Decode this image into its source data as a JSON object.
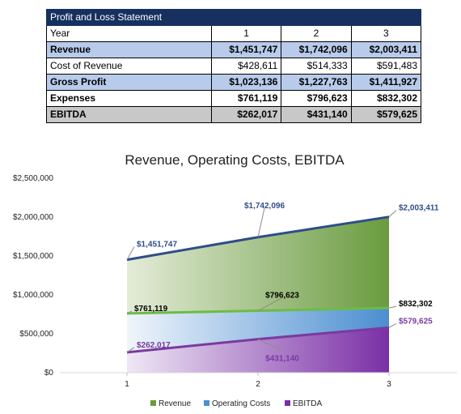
{
  "table": {
    "title": "Profit and Loss Statement",
    "header_label": "Year",
    "years": [
      "1",
      "2",
      "3"
    ],
    "rows": [
      {
        "label": "Revenue",
        "values": [
          "$1,451,747",
          "$1,742,096",
          "$2,003,411"
        ],
        "style": "blue"
      },
      {
        "label": "Cost of Revenue",
        "values": [
          "$428,611",
          "$514,333",
          "$591,483"
        ],
        "style": "plain"
      },
      {
        "label": "Gross Profit",
        "values": [
          "$1,023,136",
          "$1,227,763",
          "$1,411,927"
        ],
        "style": "blue"
      },
      {
        "label": "Expenses",
        "values": [
          "$761,119",
          "$796,623",
          "$832,302"
        ],
        "style": "bold"
      },
      {
        "label": "EBITDA",
        "values": [
          "$262,017",
          "$431,140",
          "$579,625"
        ],
        "style": "gray"
      }
    ]
  },
  "chart_data": {
    "type": "area",
    "title": "Revenue, Operating Costs, EBITDA",
    "categories": [
      "1",
      "2",
      "3"
    ],
    "ylim": [
      0,
      2500000
    ],
    "yticks": [
      "$0",
      "$500,000",
      "$1,000,000",
      "$1,500,000",
      "$2,000,000",
      "$2,500,000"
    ],
    "grid": false,
    "legend_position": "bottom",
    "series": [
      {
        "name": "Revenue",
        "values": [
          1451747,
          1742096,
          2003411
        ],
        "labels": [
          "$1,451,747",
          "$1,742,096",
          "$2,003,411"
        ],
        "line_color": "#2e4d8a",
        "label_color": "#2e4d8a",
        "fill_color": "#6a9b3f"
      },
      {
        "name": "Operating Costs",
        "values": [
          761119,
          796623,
          832302
        ],
        "labels": [
          "$761,119",
          "$796,623",
          "$832,302"
        ],
        "line_color": "#6dbb45",
        "label_color": "#000000",
        "fill_color": "#3f86c8"
      },
      {
        "name": "EBITDA",
        "values": [
          262017,
          431140,
          579625
        ],
        "labels": [
          "$262,017",
          "$431,140",
          "$579,625"
        ],
        "line_color": "#7a3a9f",
        "label_color": "#7a3a9f",
        "fill_color": "#7a2fa6"
      }
    ]
  }
}
